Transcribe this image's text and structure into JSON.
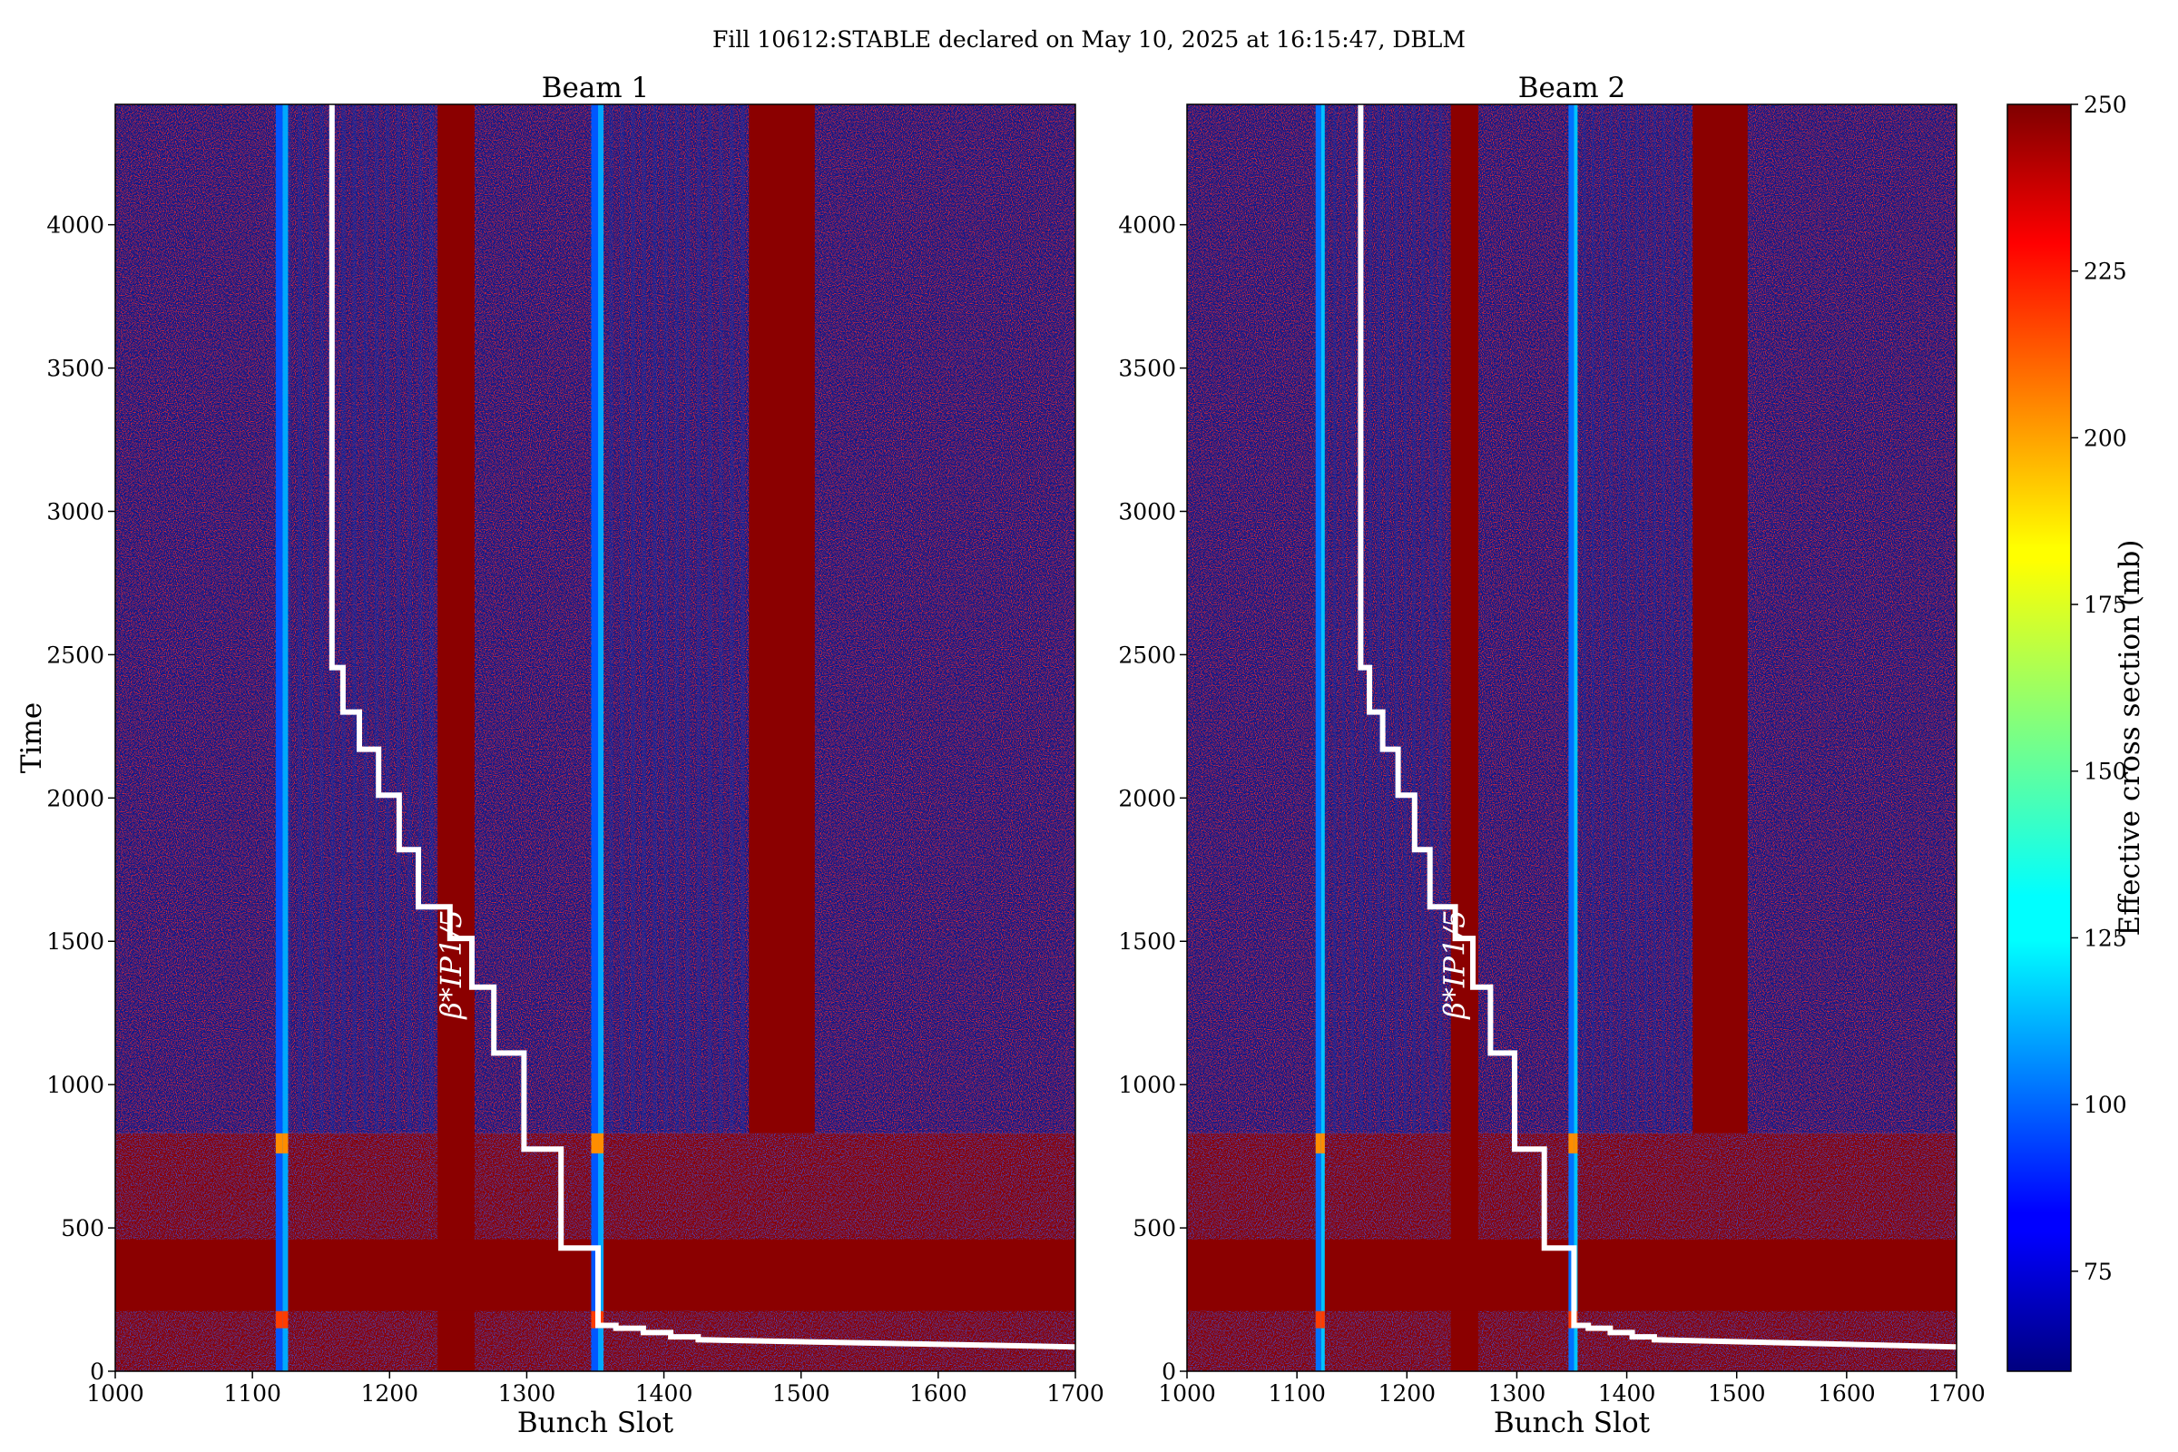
{
  "figure": {
    "title": "Fill 10612:STABLE declared on May 10, 2025 at 16:15:47, DBLM"
  },
  "colorbar": {
    "label": "Effective cross section (mb)",
    "min": 60,
    "max": 250,
    "ticks": [
      75,
      100,
      125,
      150,
      175,
      200,
      225,
      250
    ],
    "colormap": "jet"
  },
  "annotation": {
    "beta_label": "β*IP1/5"
  },
  "chart_data": [
    {
      "type": "heatmap",
      "title": "Beam 1",
      "xlabel": "Bunch Slot",
      "ylabel": "Time",
      "xlim": [
        1000,
        1700
      ],
      "ylim": [
        0,
        4420
      ],
      "xticks": [
        1000,
        1100,
        1200,
        1300,
        1400,
        1500,
        1600,
        1700
      ],
      "yticks": [
        0,
        500,
        1000,
        1500,
        2000,
        2500,
        3000,
        3500,
        4000
      ],
      "colors": {
        "background_noise_low": "#0a1a8c",
        "saturated": "#8b0000",
        "overlay_line": "#ffffff"
      },
      "bright_columns": [
        {
          "x": 1117,
          "width": 5,
          "level": 100
        },
        {
          "x": 1122,
          "width": 4,
          "level": 115
        },
        {
          "x": 1347,
          "width": 5,
          "level": 100
        },
        {
          "x": 1352,
          "width": 4,
          "level": 115
        }
      ],
      "saturated_bands": [
        {
          "x0": 1235,
          "x1": 1262,
          "t0": 0,
          "t1": 4420
        },
        {
          "x0": 1462,
          "x1": 1510,
          "t0": 830,
          "t1": 4420
        },
        {
          "x0": 1000,
          "x1": 1700,
          "t0": 210,
          "t1": 460
        }
      ],
      "lower_region_end": 830,
      "beta_star_steps": {
        "x": [
          1700,
          1425,
          1425,
          1405,
          1405,
          1385,
          1385,
          1365,
          1365,
          1352,
          1352,
          1325,
          1325,
          1298,
          1298,
          1276,
          1276,
          1260,
          1260,
          1244,
          1244,
          1221,
          1221,
          1207,
          1207,
          1192,
          1192,
          1178,
          1178,
          1166,
          1166,
          1158,
          1158
        ],
        "t": [
          85,
          110,
          120,
          120,
          135,
          135,
          150,
          150,
          160,
          160,
          430,
          430,
          775,
          775,
          1110,
          1110,
          1340,
          1340,
          1510,
          1510,
          1620,
          1620,
          1820,
          1820,
          2010,
          2010,
          2170,
          2170,
          2300,
          2300,
          2455,
          2455,
          4420
        ]
      }
    },
    {
      "type": "heatmap",
      "title": "Beam 2",
      "xlabel": "Bunch Slot",
      "ylabel": "",
      "xlim": [
        1000,
        1700
      ],
      "ylim": [
        0,
        4420
      ],
      "xticks": [
        1000,
        1100,
        1200,
        1300,
        1400,
        1500,
        1600,
        1700
      ],
      "yticks": [
        0,
        500,
        1000,
        1500,
        2000,
        2500,
        3000,
        3500,
        4000
      ],
      "colors": {
        "background_noise_low": "#0a1a8c",
        "saturated": "#8b0000",
        "overlay_line": "#ffffff"
      },
      "bright_columns": [
        {
          "x": 1117,
          "width": 5,
          "level": 105
        },
        {
          "x": 1122,
          "width": 3,
          "level": 120
        },
        {
          "x": 1347,
          "width": 5,
          "level": 105
        },
        {
          "x": 1352,
          "width": 3,
          "level": 120
        }
      ],
      "saturated_bands": [
        {
          "x0": 1240,
          "x1": 1265,
          "t0": 0,
          "t1": 4420
        },
        {
          "x0": 1460,
          "x1": 1510,
          "t0": 830,
          "t1": 4420
        },
        {
          "x0": 1000,
          "x1": 1700,
          "t0": 210,
          "t1": 460
        }
      ],
      "lower_region_end": 830,
      "beta_star_steps": {
        "x": [
          1700,
          1425,
          1425,
          1405,
          1405,
          1385,
          1385,
          1365,
          1365,
          1352,
          1352,
          1325,
          1325,
          1298,
          1298,
          1276,
          1276,
          1260,
          1260,
          1244,
          1244,
          1221,
          1221,
          1207,
          1207,
          1192,
          1192,
          1178,
          1178,
          1166,
          1166,
          1158,
          1158
        ],
        "t": [
          85,
          110,
          120,
          120,
          135,
          135,
          150,
          150,
          160,
          160,
          430,
          430,
          775,
          775,
          1110,
          1110,
          1340,
          1340,
          1510,
          1510,
          1620,
          1620,
          1820,
          1820,
          2010,
          2010,
          2170,
          2170,
          2300,
          2300,
          2455,
          2455,
          4420
        ]
      }
    }
  ]
}
